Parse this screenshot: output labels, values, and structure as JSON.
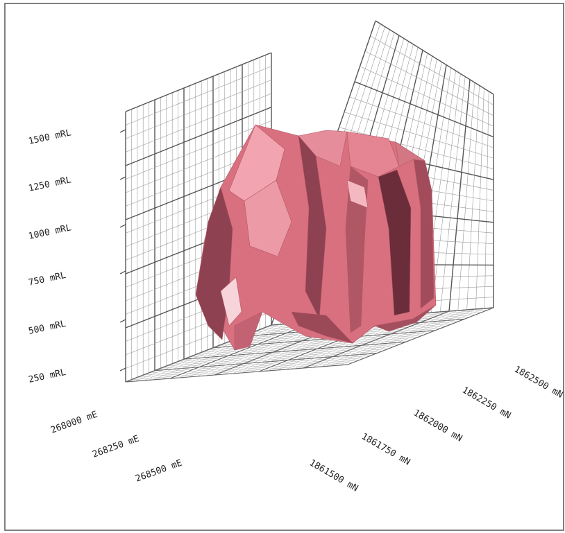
{
  "chart_data": {
    "type": "3d-surface",
    "title": "",
    "z_axis": {
      "ticks": [
        {
          "value": 1500,
          "label": "1500 mRL"
        },
        {
          "value": 1250,
          "label": "1250 mRL"
        },
        {
          "value": 1000,
          "label": "1000 mRL"
        },
        {
          "value": 750,
          "label": "750 mRL"
        },
        {
          "value": 500,
          "label": "500 mRL"
        },
        {
          "value": 250,
          "label": "250 mRL"
        }
      ]
    },
    "easting_axis": {
      "ticks": [
        {
          "value": 268000,
          "label": "268000 mE"
        },
        {
          "value": 268250,
          "label": "268250 mE"
        },
        {
          "value": 268500,
          "label": "268500 mE"
        }
      ]
    },
    "northing_axis": {
      "ticks": [
        {
          "value": 1861500,
          "label": "1861500 mN"
        },
        {
          "value": 1861750,
          "label": "1861750 mN"
        },
        {
          "value": 1862000,
          "label": "1862000 mN"
        },
        {
          "value": 1862250,
          "label": "1862250 mN"
        },
        {
          "value": 1862500,
          "label": "1862500 mN"
        }
      ]
    },
    "grid": true,
    "colors": {
      "surface_base": "#d9707f",
      "surface_light": "#f2a4b0",
      "surface_dark": "#8e4150",
      "surface_shadow": "#6a2d39",
      "grid": "#777777"
    }
  }
}
